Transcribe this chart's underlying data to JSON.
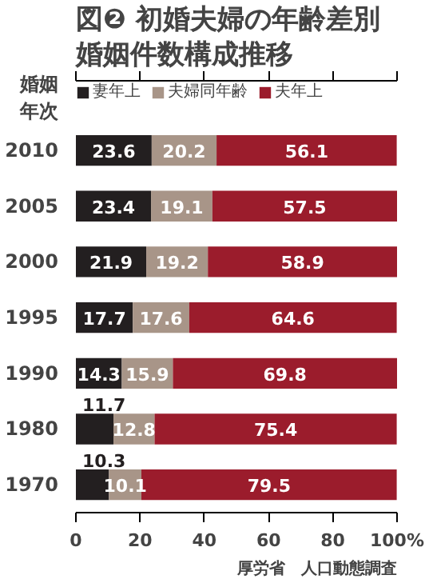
{
  "chart_data": {
    "type": "bar",
    "orientation": "horizontal",
    "stacked": true,
    "title": "図❷ 初婚夫婦の年齢差別婚姻件数構成推移",
    "ylabel": "婚姻年次",
    "categories": [
      "2010",
      "2005",
      "2000",
      "1995",
      "1990",
      "1980",
      "1970"
    ],
    "series": [
      {
        "name": "妻年上",
        "color": "#231f20",
        "values": [
          23.6,
          23.4,
          21.9,
          17.7,
          14.3,
          11.7,
          10.3
        ]
      },
      {
        "name": "夫婦同年齢",
        "color": "#a89588",
        "values": [
          20.2,
          19.1,
          19.2,
          17.6,
          15.9,
          12.8,
          10.1
        ]
      },
      {
        "name": "夫年上",
        "color": "#9b1c2c",
        "values": [
          56.1,
          57.5,
          58.9,
          64.6,
          69.8,
          75.4,
          79.5
        ]
      }
    ],
    "xlim": [
      0,
      100
    ],
    "xticks": [
      0,
      20,
      40,
      60,
      80,
      {
        "value": 100,
        "label": "100%"
      }
    ],
    "data_labels": true,
    "legend": "top",
    "grid": false,
    "annotations": [
      "厚労省　人口動態調査"
    ]
  }
}
